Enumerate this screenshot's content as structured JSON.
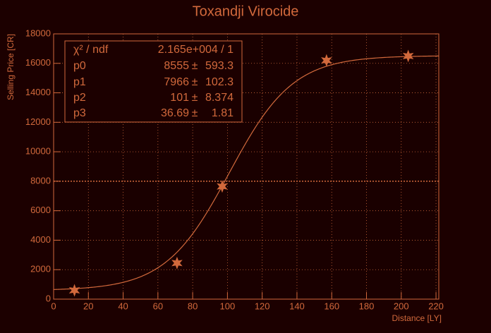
{
  "chart_data": {
    "type": "scatter",
    "title": "Toxandji Virocide",
    "x_label": "Distance [LY]",
    "y_label": "Selling Price [CR]",
    "x": [
      12,
      71,
      97,
      157,
      204
    ],
    "values": [
      600,
      2450,
      7650,
      16200,
      16500
    ],
    "color": "#d2693c",
    "xlim": [
      0,
      221.6
    ],
    "xticks": [
      0,
      20,
      40,
      60,
      80,
      100,
      120,
      140,
      160,
      180,
      200,
      220
    ],
    "ylim": [
      0,
      18000
    ],
    "yticks": [
      0,
      2000,
      4000,
      6000,
      8000,
      10000,
      12000,
      14000,
      16000,
      18000
    ],
    "grid": true,
    "reference_line": 8000,
    "stats": {
      "chi2_label": "χ² / ndf",
      "chi2_value": "2.165e+004 / 1",
      "pm": "±",
      "params": [
        {
          "name": "p0",
          "value": 8555,
          "error": 593.3
        },
        {
          "name": "p1",
          "value": 7966,
          "error": 102.3
        },
        {
          "name": "p2",
          "value": 101,
          "error": 8.374
        },
        {
          "name": "p3",
          "value": 36.69,
          "error": 1.81
        }
      ]
    }
  }
}
